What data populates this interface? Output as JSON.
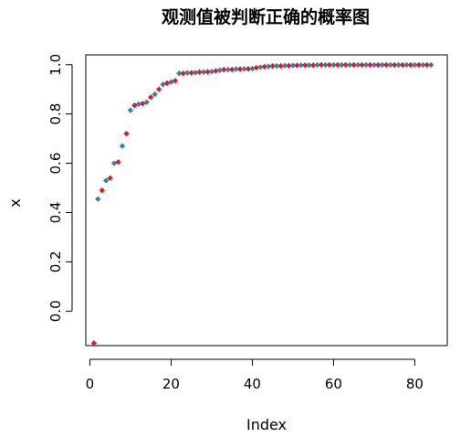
{
  "chart_data": {
    "type": "scatter",
    "title": "观测值被判断正确的概率图",
    "xlabel": "Index",
    "ylabel": "x",
    "xlim": [
      -1,
      88
    ],
    "ylim": [
      -0.14,
      1.04
    ],
    "x_ticks": [
      0,
      20,
      40,
      60,
      80
    ],
    "y_ticks": [
      0.0,
      0.2,
      0.4,
      0.6,
      0.8,
      1.0
    ],
    "x_tick_labels": [
      "0",
      "20",
      "40",
      "60",
      "80"
    ],
    "y_tick_labels": [
      "0.0",
      "0.2",
      "0.4",
      "0.6",
      "0.8",
      "1.0"
    ],
    "colors": [
      "#e31a1c",
      "#377eb8"
    ],
    "grid": false,
    "legend": "none",
    "x": [
      1,
      2,
      3,
      4,
      5,
      6,
      7,
      8,
      9,
      10,
      11,
      12,
      13,
      14,
      15,
      16,
      17,
      18,
      19,
      20,
      21,
      22,
      23,
      24,
      25,
      26,
      27,
      28,
      29,
      30,
      31,
      32,
      33,
      34,
      35,
      36,
      37,
      38,
      39,
      40,
      41,
      42,
      43,
      44,
      45,
      46,
      47,
      48,
      49,
      50,
      51,
      52,
      53,
      54,
      55,
      56,
      57,
      58,
      59,
      60,
      61,
      62,
      63,
      64,
      65,
      66,
      67,
      68,
      69,
      70,
      71,
      72,
      73,
      74,
      75,
      76,
      77,
      78,
      79,
      80,
      81,
      82,
      83,
      84
    ],
    "values": [
      -0.13,
      0.455,
      0.49,
      0.53,
      0.54,
      0.6,
      0.605,
      0.67,
      0.72,
      0.815,
      0.835,
      0.84,
      0.842,
      0.848,
      0.868,
      0.88,
      0.9,
      0.92,
      0.925,
      0.93,
      0.935,
      0.965,
      0.965,
      0.967,
      0.967,
      0.968,
      0.97,
      0.97,
      0.971,
      0.972,
      0.975,
      0.977,
      0.98,
      0.98,
      0.98,
      0.982,
      0.982,
      0.983,
      0.983,
      0.984,
      0.988,
      0.99,
      0.992,
      0.993,
      0.995,
      0.995,
      0.995,
      0.996,
      0.996,
      0.997,
      0.997,
      0.998,
      0.998,
      0.998,
      0.998,
      0.999,
      0.999,
      0.999,
      0.999,
      0.999,
      0.999,
      0.999,
      0.999,
      0.999,
      0.999,
      0.999,
      0.999,
      0.999,
      0.999,
      0.999,
      0.999,
      0.999,
      0.999,
      0.999,
      0.999,
      0.999,
      0.999,
      0.999,
      0.999,
      0.999,
      0.999,
      0.999,
      0.999,
      0.999
    ]
  }
}
